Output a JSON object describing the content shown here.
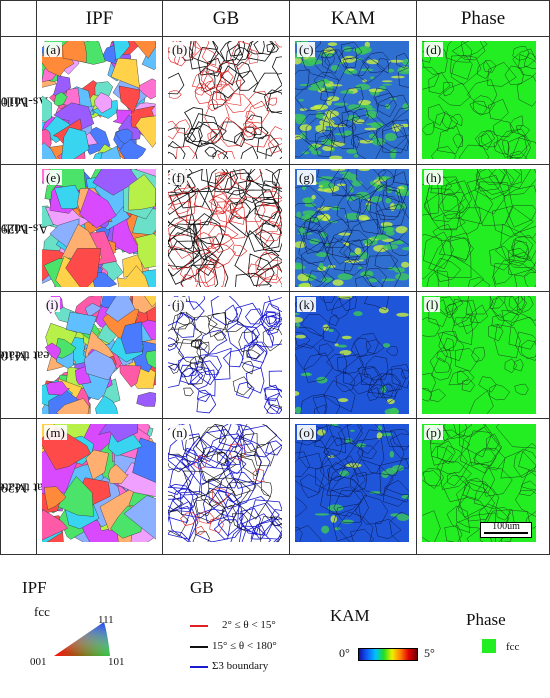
{
  "columns": [
    "IPF",
    "GB",
    "KAM",
    "Phase"
  ],
  "rows": [
    {
      "line1": "M100",
      "line2": "As-built"
    },
    {
      "line1": "M290",
      "line2": "As-built"
    },
    {
      "line1": "M100",
      "line2": "Heat treated"
    },
    {
      "line1": "M290",
      "line2": "Heat treated"
    }
  ],
  "panel_labels": [
    "(a)",
    "(b)",
    "(c)",
    "(d)",
    "(e)",
    "(f)",
    "(g)",
    "(h)",
    "(i)",
    "(j)",
    "(k)",
    "(l)",
    "(m)",
    "(n)",
    "(o)",
    "(p)"
  ],
  "scale_bar": "100um",
  "legend": {
    "ipf": {
      "title": "IPF",
      "phase": "fcc",
      "corner_top": "111",
      "corner_left": "001",
      "corner_right": "101"
    },
    "gb": {
      "title": "GB",
      "items": [
        {
          "label": "2° ≤ θ < 15°",
          "color": "#e02020"
        },
        {
          "label": "15° ≤ θ < 180°",
          "color": "#111111"
        },
        {
          "label": "Σ3 boundary",
          "color": "#1a1ad0"
        }
      ]
    },
    "kam": {
      "title": "KAM",
      "min": "0°",
      "max": "5°"
    },
    "phase": {
      "title": "Phase",
      "label": "fcc",
      "color": "#22ee22"
    }
  }
}
